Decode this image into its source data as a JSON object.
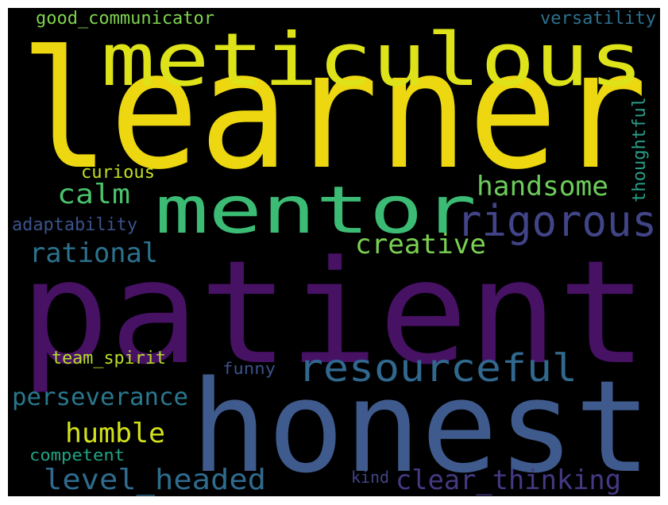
{
  "words": [
    {
      "id": "learner",
      "text": "learner",
      "color": "#ecd711"
    },
    {
      "id": "meticulous",
      "text": "meticulous",
      "color": "#dde318"
    },
    {
      "id": "patient",
      "text": "patient",
      "color": "#471164"
    },
    {
      "id": "honest",
      "text": "honest",
      "color": "#3f5a8c"
    },
    {
      "id": "mentor",
      "text": "mentor",
      "color": "#3cbb75"
    },
    {
      "id": "rigorous",
      "text": "rigorous",
      "color": "#414487"
    },
    {
      "id": "resourceful",
      "text": "resourceful",
      "color": "#31688e"
    },
    {
      "id": "handsome",
      "text": "handsome",
      "color": "#6ccd5a"
    },
    {
      "id": "creative",
      "text": "creative",
      "color": "#7ad151"
    },
    {
      "id": "calm",
      "text": "calm",
      "color": "#4ac16d"
    },
    {
      "id": "rational",
      "text": "rational",
      "color": "#2c728e"
    },
    {
      "id": "perseverance",
      "text": "perseverance",
      "color": "#2a788e"
    },
    {
      "id": "humble",
      "text": "humble",
      "color": "#d2e21b"
    },
    {
      "id": "level_headed",
      "text": "level_headed",
      "color": "#2f6b8e"
    },
    {
      "id": "clear_thinking",
      "text": "clear_thinking",
      "color": "#443983"
    },
    {
      "id": "good_communicator",
      "text": "good_communicator",
      "color": "#7fd34e"
    },
    {
      "id": "versatility",
      "text": "versatility",
      "color": "#2c718e"
    },
    {
      "id": "thoughtful",
      "text": "thoughtful",
      "color": "#2a9c89"
    },
    {
      "id": "curious",
      "text": "curious",
      "color": "#c2df23"
    },
    {
      "id": "adaptability",
      "text": "adaptability",
      "color": "#3b528b"
    },
    {
      "id": "team_spirit",
      "text": "team_spirit",
      "color": "#b8de29"
    },
    {
      "id": "funny",
      "text": "funny",
      "color": "#3b518b"
    },
    {
      "id": "competent",
      "text": "competent",
      "color": "#20a486"
    },
    {
      "id": "kind",
      "text": "kind",
      "color": "#414487"
    }
  ]
}
